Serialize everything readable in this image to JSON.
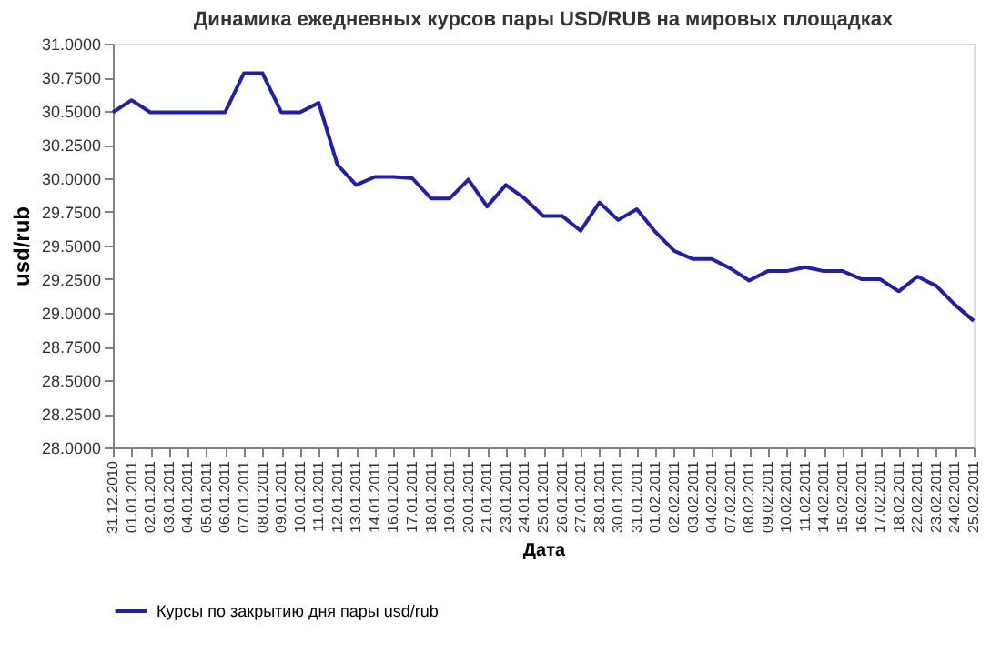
{
  "chart_data": {
    "type": "line",
    "title": "Динамика ежедневных курсов пары USD/RUB на мировых площадках",
    "xlabel": "Дата",
    "ylabel": "usd/rub",
    "categories": [
      "31.12.2010",
      "01.01.2011",
      "02.01.2011",
      "03.01.2011",
      "04.01.2011",
      "05.01.2011",
      "06.01.2011",
      "07.01.2011",
      "08.01.2011",
      "09.01.2011",
      "10.01.2011",
      "11.01.2011",
      "12.01.2011",
      "13.01.2011",
      "14.01.2011",
      "16.01.2011",
      "17.01.2011",
      "18.01.2011",
      "19.01.2011",
      "20.01.2011",
      "21.01.2011",
      "23.01.2011",
      "24.01.2011",
      "25.01.2011",
      "26.01.2011",
      "27.01.2011",
      "28.01.2011",
      "30.01.2011",
      "31.01.2011",
      "01.02.2011",
      "02.02.2011",
      "03.02.2011",
      "04.02.2011",
      "07.02.2011",
      "08.02.2011",
      "09.02.2011",
      "10.02.2011",
      "11.02.2011",
      "14.02.2011",
      "15.02.2011",
      "16.02.2011",
      "17.02.2011",
      "18.02.2011",
      "22.02.2011",
      "23.02.2011",
      "24.02.2011",
      "25.02.2011"
    ],
    "series": [
      {
        "name": "Курсы по закрытию дня пары usd/rub",
        "color": "#2020a0",
        "values": [
          30.49,
          30.58,
          30.49,
          30.49,
          30.49,
          30.49,
          30.49,
          30.78,
          30.78,
          30.49,
          30.49,
          30.56,
          30.1,
          29.95,
          30.01,
          30.01,
          30.0,
          29.85,
          29.85,
          29.99,
          29.79,
          29.95,
          29.85,
          29.72,
          29.72,
          29.61,
          29.82,
          29.69,
          29.77,
          29.6,
          29.46,
          29.4,
          29.4,
          29.33,
          29.24,
          29.31,
          29.31,
          29.34,
          29.31,
          29.31,
          29.25,
          29.25,
          29.16,
          29.27,
          29.2,
          29.06,
          28.94
        ]
      }
    ],
    "ylim": [
      28,
      31
    ],
    "yticks": [
      {
        "value": 28,
        "label": "28.0000"
      },
      {
        "value": 28.25,
        "label": "28.2500"
      },
      {
        "value": 28.5,
        "label": "28.5000"
      },
      {
        "value": 28.75,
        "label": "28.7500"
      },
      {
        "value": 29,
        "label": "29.0000"
      },
      {
        "value": 29.25,
        "label": "29.2500"
      },
      {
        "value": 29.5,
        "label": "29.5000"
      },
      {
        "value": 29.75,
        "label": "29.7500"
      },
      {
        "value": 30,
        "label": "30.0000"
      },
      {
        "value": 30.25,
        "label": "30.2500"
      },
      {
        "value": 30.5,
        "label": "30.5000"
      },
      {
        "value": 30.75,
        "label": "30.7500"
      },
      {
        "value": 31,
        "label": "31.0000"
      }
    ],
    "grid": false,
    "legend": "bottom",
    "marker": "none",
    "line_style": "solid"
  }
}
